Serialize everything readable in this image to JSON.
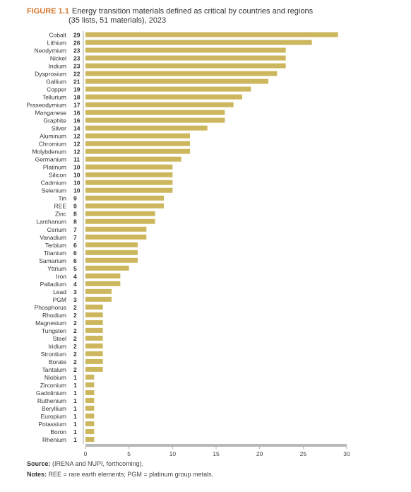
{
  "figure": {
    "label": "FIGURE 1.1",
    "title_line1": "Energy transition materials defined as critical by countries and regions",
    "title_line2": "(35 lists, 51 materials), 2023"
  },
  "footer": {
    "source_label": "Source:",
    "source_text": "(IRENA and NUPI, forthcoming).",
    "notes_label": "Notes:",
    "notes_text": "REE = rare earth elements; PGM = platinum group metals."
  },
  "colors": {
    "bar": "#cdb75e",
    "label_accent": "#d4762c",
    "axis": "#b8b8b8"
  },
  "chart_data": {
    "type": "bar",
    "orientation": "horizontal",
    "categories": [
      "Cobalt",
      "Lithium",
      "Neodymium",
      "Nickel",
      "Indium",
      "Dysprosium",
      "Gallium",
      "Copper",
      "Tellurium",
      "Praseodymium",
      "Manganese",
      "Graphite",
      "Silver",
      "Aluminum",
      "Chromium",
      "Molybdenum",
      "Germanium",
      "Platinum",
      "Silicon",
      "Cadmium",
      "Selenium",
      "Tin",
      "REE",
      "Zinc",
      "Lanthanum",
      "Cerium",
      "Vanadium",
      "Terbium",
      "Titanium",
      "Samarium",
      "Yttrium",
      "Iron",
      "Palladium",
      "Lead",
      "PGM",
      "Phosphorus",
      "Rhodium",
      "Magnesium",
      "Tungsten",
      "Steel",
      "Iridium",
      "Strontium",
      "Borate",
      "Tantalum",
      "Niobium",
      "Zirconium",
      "Gadolinium",
      "Ruthenium",
      "Beryllium",
      "Europium",
      "Potassium",
      "Boron",
      "Rhenium"
    ],
    "values": [
      29,
      26,
      23,
      23,
      23,
      22,
      21,
      19,
      18,
      17,
      16,
      16,
      14,
      12,
      12,
      12,
      11,
      10,
      10,
      10,
      10,
      9,
      9,
      8,
      8,
      7,
      7,
      6,
      6,
      6,
      5,
      4,
      4,
      3,
      3,
      2,
      2,
      2,
      2,
      2,
      2,
      2,
      2,
      2,
      1,
      1,
      1,
      1,
      1,
      1,
      1,
      1,
      1
    ],
    "xlim": [
      0,
      30
    ],
    "x_ticks": [
      "0",
      "5",
      "10",
      "15",
      "20",
      "25",
      "30"
    ],
    "grid": false,
    "legend": "none",
    "data_labels": "bold values left of bars"
  }
}
